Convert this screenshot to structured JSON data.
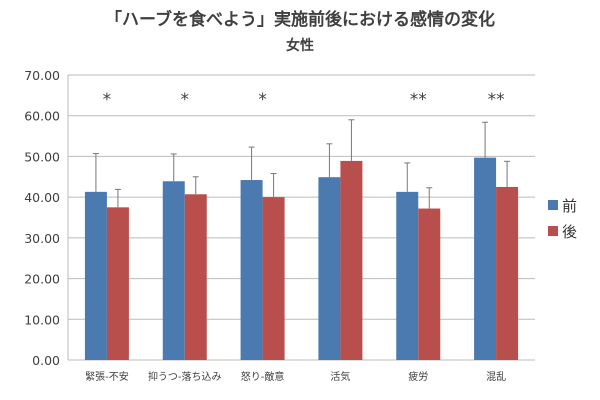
{
  "chart_data": {
    "type": "bar",
    "title": "「ハーブを食べよう」実施前後における感情の変化",
    "subtitle": "女性",
    "categories": [
      "緊張-不安",
      "抑うつ-落ち込み",
      "怒り-敵意",
      "活気",
      "疲労",
      "混乱"
    ],
    "series": [
      {
        "name": "前",
        "color": "#4a7ab0",
        "values": [
          41.3,
          43.9,
          44.2,
          44.9,
          41.3,
          49.7
        ],
        "error_upper": [
          50.7,
          50.6,
          52.3,
          53.1,
          48.4,
          58.4
        ]
      },
      {
        "name": "後",
        "color": "#b94f4c",
        "values": [
          37.5,
          40.7,
          40.0,
          48.9,
          37.2,
          42.5
        ],
        "error_upper": [
          41.9,
          45.0,
          45.8,
          59.0,
          42.3,
          48.8
        ]
      }
    ],
    "significance": [
      "*",
      "*",
      "*",
      "",
      "**",
      "**"
    ],
    "ylim": [
      0,
      70
    ],
    "yticks": [
      "0.00",
      "10.00",
      "20.00",
      "30.00",
      "40.00",
      "50.00",
      "60.00",
      "70.00"
    ],
    "grid": true,
    "legend": "right"
  }
}
